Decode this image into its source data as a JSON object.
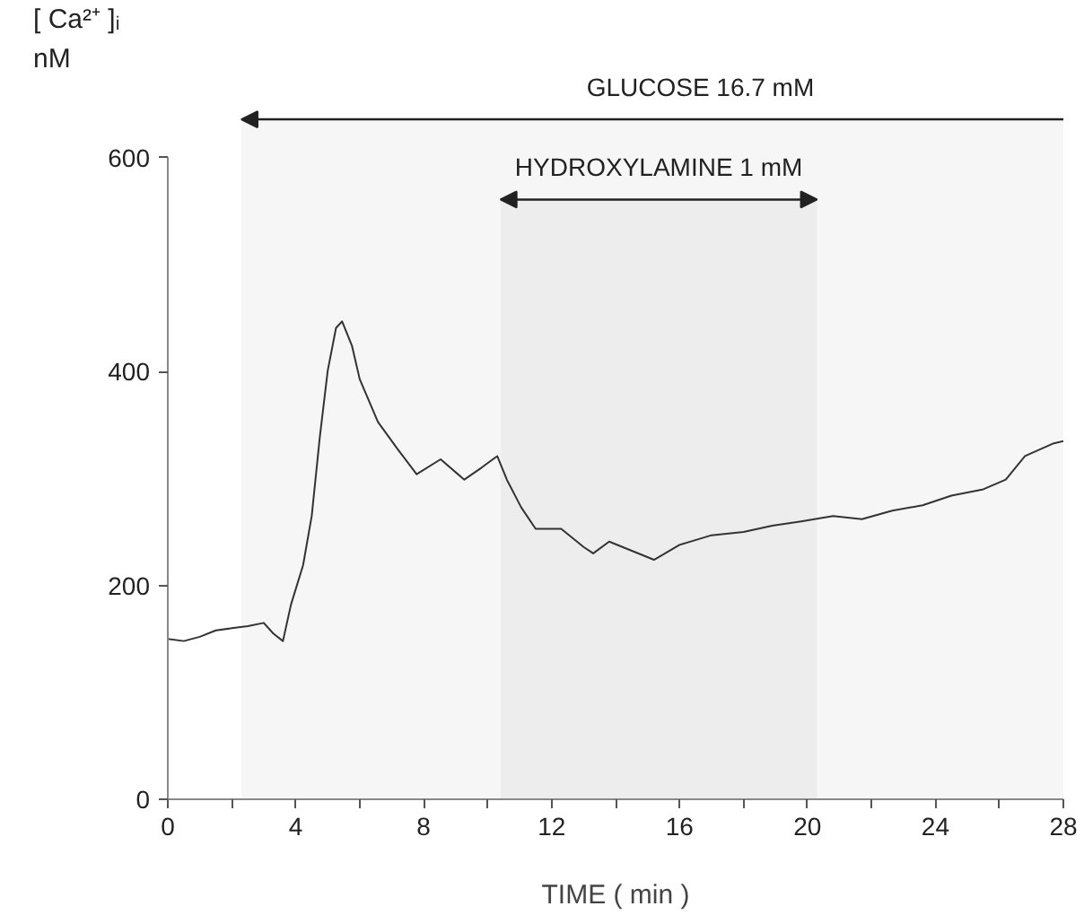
{
  "chart_data": {
    "type": "line",
    "xlabel": "TIME ( min )",
    "ylabel": "[ Ca²⁺ ]ᵢ nM",
    "x": [
      0,
      0.5,
      1,
      1.5,
      2,
      2.5,
      3,
      3.3,
      3.6,
      3.85,
      4.23,
      4.5,
      4.75,
      5.0,
      5.26,
      5.45,
      5.76,
      6.0,
      6.57,
      7.2,
      7.78,
      8.53,
      9.27,
      9.8,
      10.3,
      10.6,
      11.05,
      11.5,
      12.3,
      13.0,
      13.3,
      13.8,
      15.2,
      16.0,
      17.0,
      18.0,
      18.9,
      19.8,
      20.8,
      21.7,
      22.65,
      23.6,
      24.5,
      25.5,
      26.2,
      26.8,
      27.7,
      28
    ],
    "series": [
      {
        "color": "#333333",
        "values": [
          150,
          148,
          152,
          158,
          160,
          162,
          165,
          155,
          148,
          182,
          219,
          265,
          338,
          401,
          441,
          447,
          424,
          393,
          353,
          327,
          304,
          318,
          299,
          310,
          321,
          299,
          273,
          253,
          253,
          236,
          230,
          241,
          224,
          238,
          247,
          250,
          256,
          260,
          265,
          262,
          270,
          275,
          284,
          290,
          299,
          321,
          333,
          335
        ]
      }
    ],
    "xlim": [
      0,
      28
    ],
    "ylim": [
      0,
      600
    ],
    "xticks": [
      0,
      {
        "value": 2,
        "label": null
      },
      4,
      {
        "value": 6,
        "label": null
      },
      8,
      {
        "value": 10,
        "label": null
      },
      12,
      {
        "value": 14,
        "label": null
      },
      16,
      {
        "value": 18,
        "label": null
      },
      20,
      {
        "value": 22,
        "label": null
      },
      24,
      {
        "value": 26,
        "label": null
      },
      28
    ],
    "yticks": [
      0,
      200,
      400,
      600
    ],
    "bands": [
      {
        "axis": "x",
        "from": 2.3,
        "to": 28,
        "label": "GLUCOSE 16.7 mM"
      },
      {
        "axis": "x",
        "from": 10.4,
        "to": 20.3,
        "label": "HYDROXYLAMINE 1 mM"
      }
    ]
  }
}
